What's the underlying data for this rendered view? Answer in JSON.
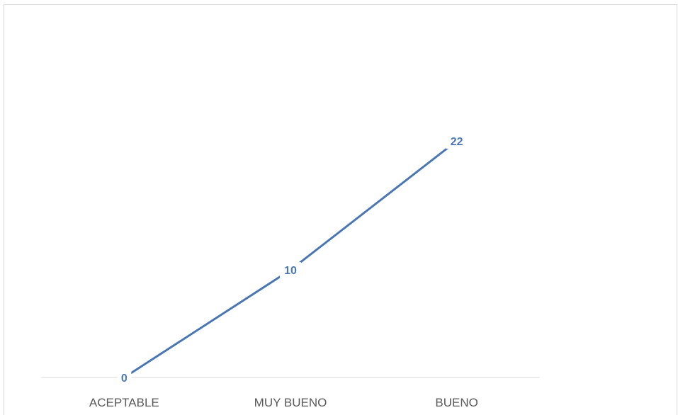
{
  "chart_data": {
    "type": "line",
    "categories": [
      "ACEPTABLE",
      "MUY BUENO",
      "BUENO"
    ],
    "values": [
      0,
      10,
      22
    ],
    "title": "",
    "xlabel": "",
    "ylabel": "",
    "ylim": [
      0,
      25
    ],
    "grid": false,
    "legend": "none",
    "colors": {
      "line": "#4a77b4",
      "axis": "#d9d9d9",
      "text": "#595959",
      "data_label": "#4a77b4"
    }
  }
}
